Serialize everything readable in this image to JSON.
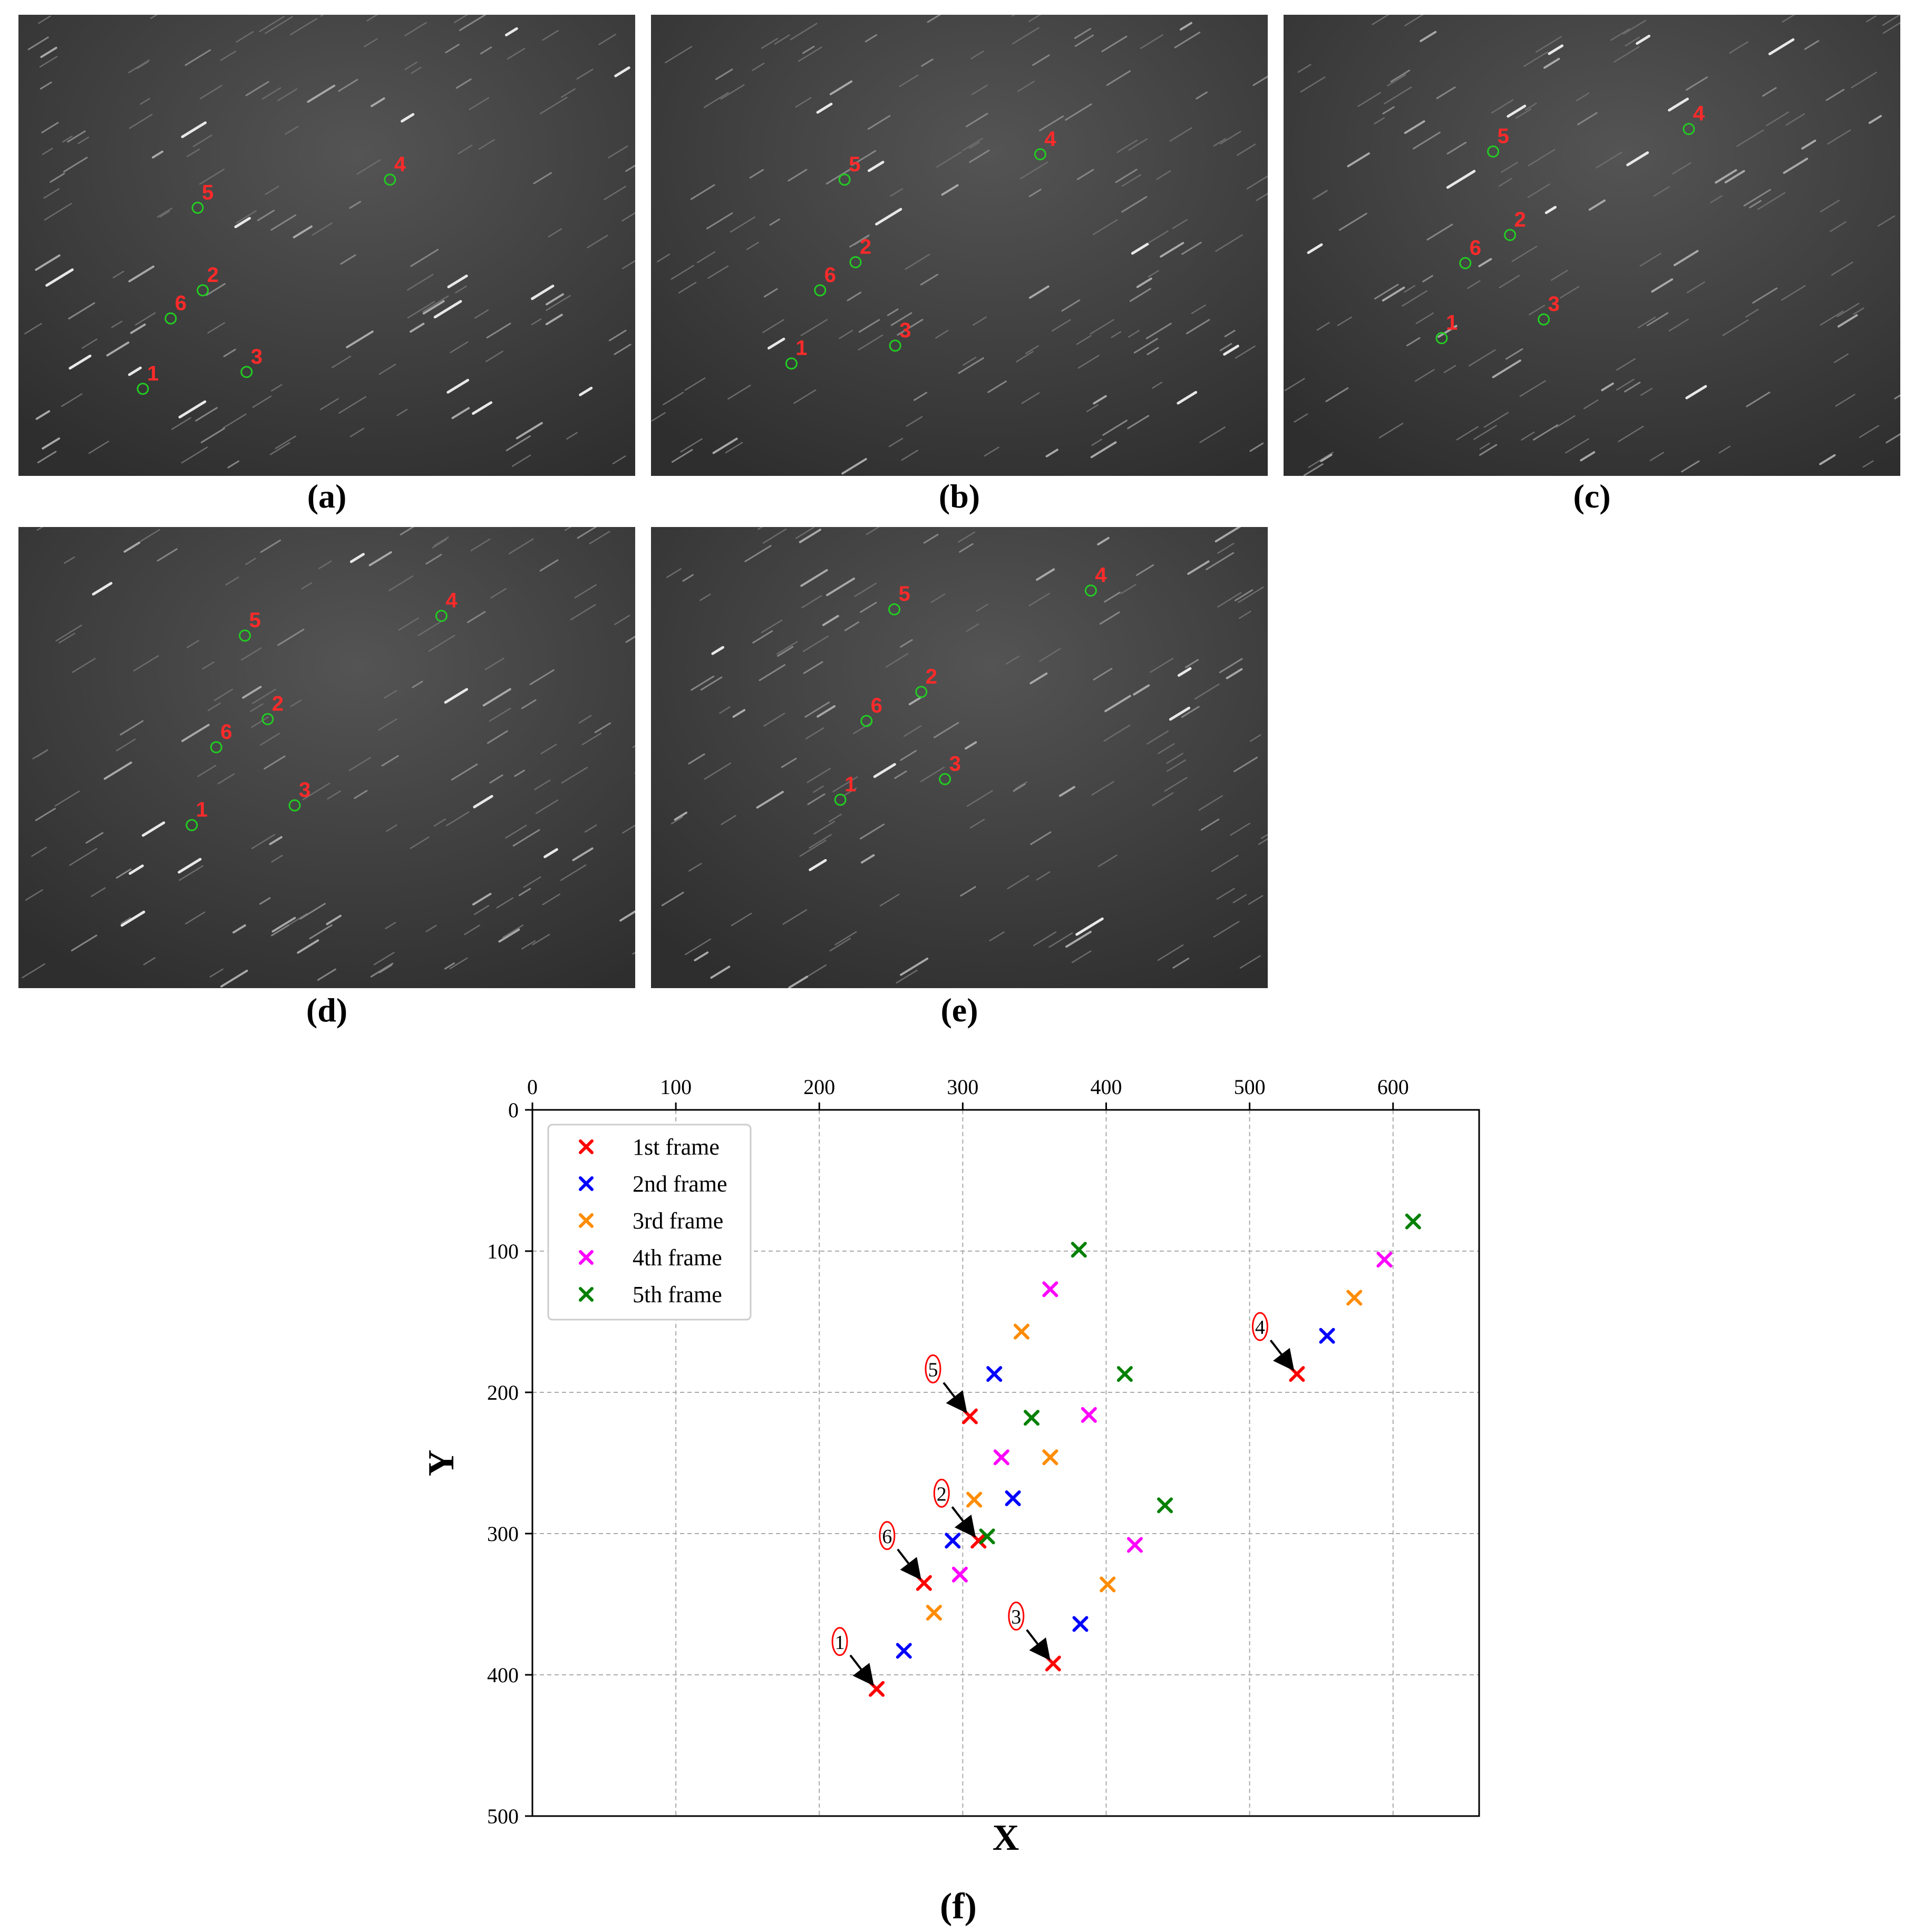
{
  "panels": [
    {
      "caption": "(a)",
      "points": [
        {
          "label": "1",
          "x": 240,
          "y": 410
        },
        {
          "label": "2",
          "x": 311,
          "y": 305
        },
        {
          "label": "3",
          "x": 363,
          "y": 392
        },
        {
          "label": "4",
          "x": 533,
          "y": 187
        },
        {
          "label": "5",
          "x": 305,
          "y": 217
        },
        {
          "label": "6",
          "x": 273,
          "y": 335
        }
      ]
    },
    {
      "caption": "(b)",
      "points": [
        {
          "label": "1",
          "x": 259,
          "y": 383
        },
        {
          "label": "2",
          "x": 335,
          "y": 275
        },
        {
          "label": "3",
          "x": 382,
          "y": 364
        },
        {
          "label": "4",
          "x": 554,
          "y": 160
        },
        {
          "label": "5",
          "x": 322,
          "y": 187
        },
        {
          "label": "6",
          "x": 293,
          "y": 305
        }
      ]
    },
    {
      "caption": "(c)",
      "points": [
        {
          "label": "1",
          "x": 280,
          "y": 356
        },
        {
          "label": "2",
          "x": 361,
          "y": 246
        },
        {
          "label": "3",
          "x": 401,
          "y": 336
        },
        {
          "label": "4",
          "x": 573,
          "y": 133
        },
        {
          "label": "5",
          "x": 341,
          "y": 157
        },
        {
          "label": "6",
          "x": 308,
          "y": 276
        }
      ]
    },
    {
      "caption": "(d)",
      "points": [
        {
          "label": "1",
          "x": 298,
          "y": 329
        },
        {
          "label": "2",
          "x": 388,
          "y": 216
        },
        {
          "label": "3",
          "x": 420,
          "y": 308
        },
        {
          "label": "4",
          "x": 594,
          "y": 106
        },
        {
          "label": "5",
          "x": 361,
          "y": 127
        },
        {
          "label": "6",
          "x": 327,
          "y": 246
        }
      ]
    },
    {
      "caption": "(e)",
      "points": [
        {
          "label": "1",
          "x": 317,
          "y": 302
        },
        {
          "label": "2",
          "x": 413,
          "y": 187
        },
        {
          "label": "3",
          "x": 441,
          "y": 280
        },
        {
          "label": "4",
          "x": 614,
          "y": 79
        },
        {
          "label": "5",
          "x": 381,
          "y": 99
        },
        {
          "label": "6",
          "x": 348,
          "y": 218
        }
      ]
    }
  ],
  "chart_data": {
    "type": "scatter",
    "caption": "(f)",
    "xlabel": "X",
    "ylabel": "Y",
    "xlim": [
      0,
      660
    ],
    "ylim": [
      500,
      0
    ],
    "xticks": [
      0,
      100,
      200,
      300,
      400,
      500,
      600
    ],
    "yticks": [
      0,
      100,
      200,
      300,
      400,
      500
    ],
    "x_axis_position": "top",
    "grid": true,
    "legend_position": "top-left",
    "marker": "x",
    "series": [
      {
        "name": "1st frame",
        "color": "#ff0000",
        "points": [
          [
            240,
            410
          ],
          [
            311,
            305
          ],
          [
            363,
            392
          ],
          [
            533,
            187
          ],
          [
            305,
            217
          ],
          [
            273,
            335
          ]
        ]
      },
      {
        "name": "2nd frame",
        "color": "#0000ff",
        "points": [
          [
            259,
            383
          ],
          [
            335,
            275
          ],
          [
            382,
            364
          ],
          [
            554,
            160
          ],
          [
            322,
            187
          ],
          [
            293,
            305
          ]
        ]
      },
      {
        "name": "3rd frame",
        "color": "#ff8c00",
        "points": [
          [
            280,
            356
          ],
          [
            361,
            246
          ],
          [
            401,
            336
          ],
          [
            573,
            133
          ],
          [
            341,
            157
          ],
          [
            308,
            276
          ]
        ]
      },
      {
        "name": "4th frame",
        "color": "#ff00ff",
        "points": [
          [
            298,
            329
          ],
          [
            388,
            216
          ],
          [
            420,
            308
          ],
          [
            594,
            106
          ],
          [
            361,
            127
          ],
          [
            327,
            246
          ]
        ]
      },
      {
        "name": "5th frame",
        "color": "#008000",
        "points": [
          [
            317,
            302
          ],
          [
            413,
            187
          ],
          [
            441,
            280
          ],
          [
            614,
            79
          ],
          [
            381,
            99
          ],
          [
            348,
            218
          ]
        ]
      }
    ],
    "annotations": [
      {
        "text": "1",
        "target": [
          240,
          410
        ]
      },
      {
        "text": "2",
        "target": [
          311,
          305
        ]
      },
      {
        "text": "3",
        "target": [
          363,
          392
        ]
      },
      {
        "text": "4",
        "target": [
          533,
          187
        ]
      },
      {
        "text": "5",
        "target": [
          305,
          217
        ]
      },
      {
        "text": "6",
        "target": [
          273,
          335
        ]
      }
    ]
  }
}
